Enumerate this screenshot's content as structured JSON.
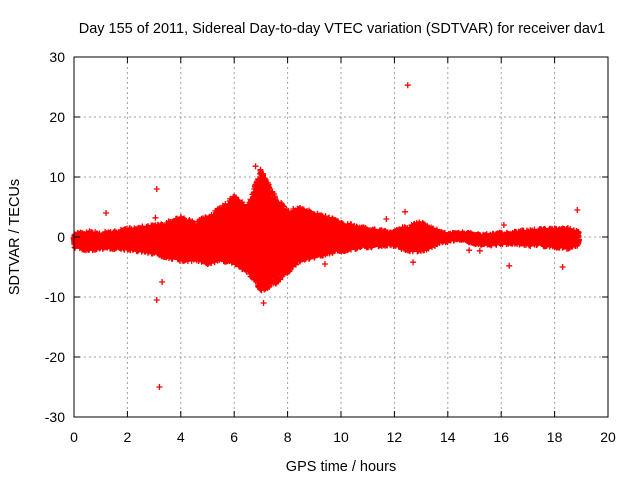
{
  "chart_data": {
    "type": "scatter",
    "title": "Day 155 of 2011, Sidereal Day-to-day VTEC variation (SDTVAR) for receiver dav1",
    "xlabel": "GPS time / hours",
    "ylabel": "SDTVAR / TECUs",
    "xlim": [
      0,
      20
    ],
    "ylim": [
      -30,
      30
    ],
    "xticks": [
      0,
      2,
      4,
      6,
      8,
      10,
      12,
      14,
      16,
      18,
      20
    ],
    "yticks": [
      -30,
      -20,
      -10,
      0,
      10,
      20,
      30
    ],
    "grid": true,
    "marker": "+",
    "color": "#ff0000",
    "series": [
      {
        "name": "dav1",
        "band": [
          [
            0.0,
            -1.8,
            0.6
          ],
          [
            0.5,
            -2.5,
            1.0
          ],
          [
            1.0,
            -2.0,
            0.8
          ],
          [
            1.5,
            -2.0,
            1.0
          ],
          [
            2.0,
            -2.2,
            1.5
          ],
          [
            2.5,
            -2.5,
            1.8
          ],
          [
            3.0,
            -3.0,
            2.0
          ],
          [
            3.5,
            -3.5,
            2.5
          ],
          [
            4.0,
            -4.0,
            3.5
          ],
          [
            4.5,
            -4.0,
            2.5
          ],
          [
            5.0,
            -4.5,
            3.5
          ],
          [
            5.5,
            -4.0,
            5.0
          ],
          [
            6.0,
            -4.5,
            7.0
          ],
          [
            6.5,
            -6.0,
            5.0
          ],
          [
            7.0,
            -9.0,
            11.5
          ],
          [
            7.5,
            -8.0,
            7.0
          ],
          [
            8.0,
            -6.0,
            4.5
          ],
          [
            8.5,
            -4.0,
            5.0
          ],
          [
            9.0,
            -3.5,
            4.0
          ],
          [
            9.5,
            -3.0,
            3.5
          ],
          [
            10.0,
            -2.5,
            2.5
          ],
          [
            10.5,
            -2.0,
            2.0
          ],
          [
            11.0,
            -1.8,
            1.5
          ],
          [
            11.5,
            -1.5,
            1.2
          ],
          [
            12.0,
            -1.5,
            1.0
          ],
          [
            12.5,
            -2.5,
            2.0
          ],
          [
            13.0,
            -2.5,
            2.5
          ],
          [
            13.5,
            -1.5,
            1.5
          ],
          [
            14.0,
            -0.8,
            0.6
          ],
          [
            14.5,
            -0.5,
            0.8
          ],
          [
            15.0,
            -1.2,
            0.6
          ],
          [
            15.5,
            -1.5,
            0.5
          ],
          [
            16.0,
            -1.2,
            0.8
          ],
          [
            16.5,
            -1.2,
            1.0
          ],
          [
            17.0,
            -1.5,
            1.2
          ],
          [
            17.5,
            -1.5,
            1.4
          ],
          [
            18.0,
            -1.8,
            1.5
          ],
          [
            18.5,
            -2.0,
            1.5
          ],
          [
            18.9,
            -1.5,
            1.0
          ]
        ],
        "outliers": [
          [
            12.5,
            25.3
          ],
          [
            3.2,
            -25.0
          ],
          [
            3.1,
            -10.5
          ],
          [
            3.3,
            -7.5
          ],
          [
            3.1,
            8.0
          ],
          [
            3.05,
            3.2
          ],
          [
            1.2,
            4.0
          ],
          [
            12.4,
            4.2
          ],
          [
            11.7,
            3.0
          ],
          [
            16.1,
            2.0
          ],
          [
            16.3,
            -4.8
          ],
          [
            18.85,
            4.5
          ],
          [
            18.3,
            -5.0
          ],
          [
            7.1,
            -11.0
          ],
          [
            6.8,
            11.8
          ],
          [
            9.4,
            -4.5
          ],
          [
            12.7,
            -4.2
          ],
          [
            14.8,
            -2.2
          ],
          [
            15.2,
            -2.3
          ]
        ]
      }
    ]
  }
}
